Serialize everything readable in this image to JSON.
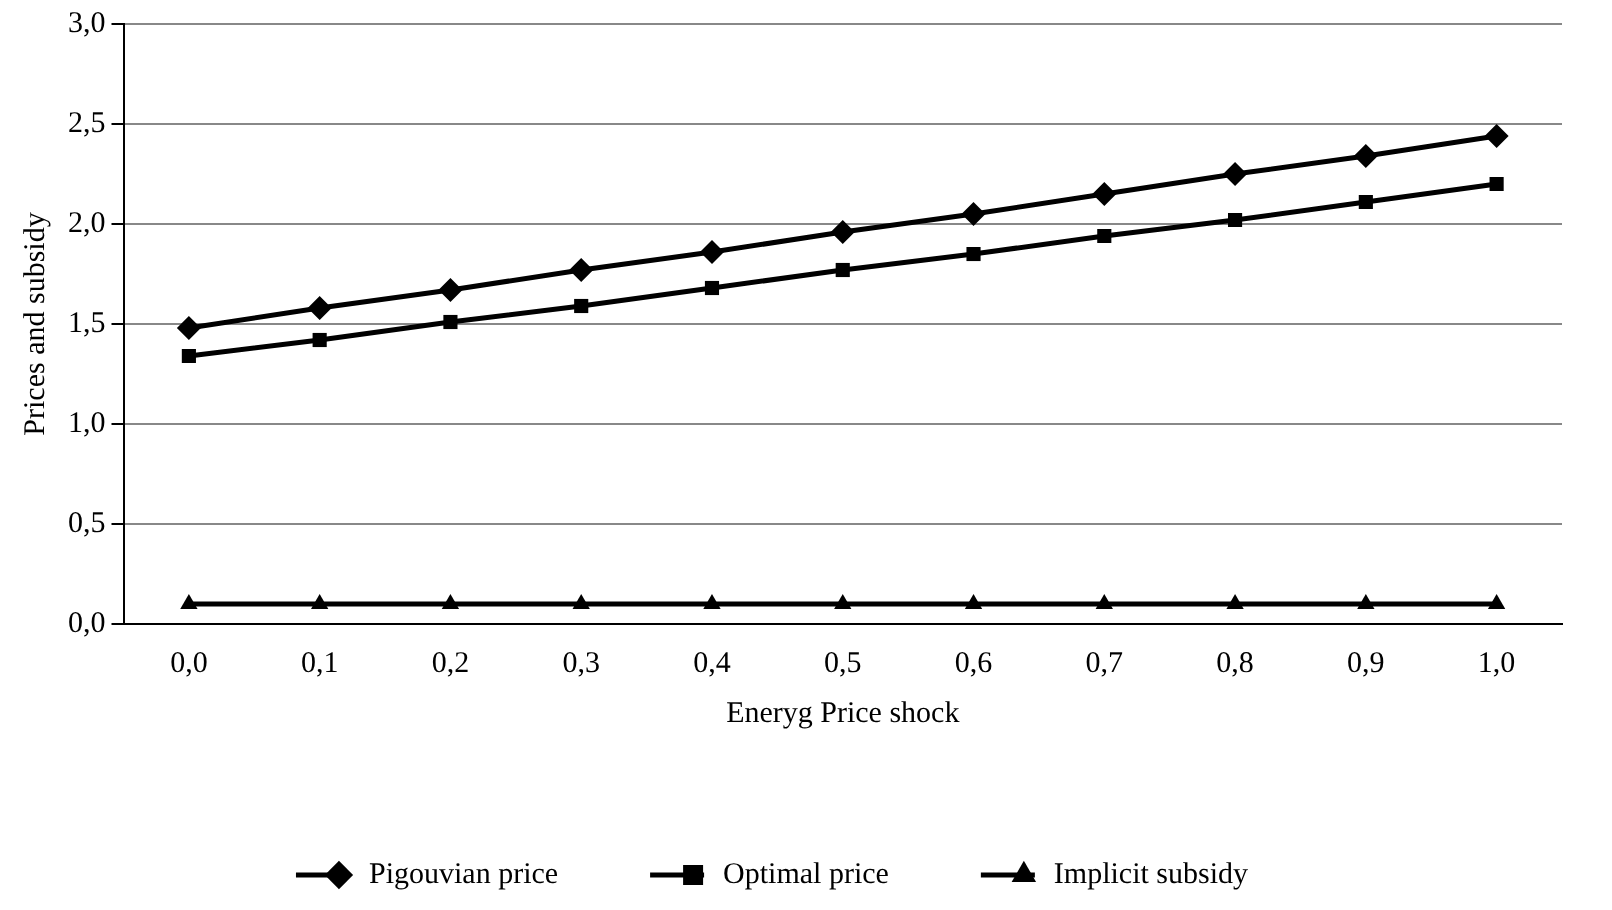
{
  "chart_data": {
    "type": "line",
    "xlabel": "Eneryg Price shock",
    "ylabel": "Prices and subsidy",
    "categories": [
      "0,0",
      "0,1",
      "0,2",
      "0,3",
      "0,4",
      "0,5",
      "0,6",
      "0,7",
      "0,8",
      "0,9",
      "1,0"
    ],
    "series": [
      {
        "name": "Pigouvian price",
        "color": "#000000",
        "marker": "diamond",
        "values": [
          1.48,
          1.58,
          1.67,
          1.77,
          1.86,
          1.96,
          2.05,
          2.15,
          2.25,
          2.34,
          2.44
        ]
      },
      {
        "name": "Optimal price",
        "color": "#000000",
        "marker": "square",
        "values": [
          1.34,
          1.42,
          1.51,
          1.59,
          1.68,
          1.77,
          1.85,
          1.94,
          2.02,
          2.11,
          2.2
        ]
      },
      {
        "name": "Implicit subsidy",
        "color": "#000000",
        "marker": "triangle",
        "values": [
          0.1,
          0.1,
          0.1,
          0.1,
          0.1,
          0.1,
          0.1,
          0.1,
          0.1,
          0.1,
          0.1
        ]
      }
    ],
    "ylim": [
      0,
      3
    ],
    "yticks": [
      {
        "value": 0,
        "label": "0,0"
      },
      {
        "value": 0.5,
        "label": "0,5"
      },
      {
        "value": 1,
        "label": "1,0"
      },
      {
        "value": 1.5,
        "label": "1,5"
      },
      {
        "value": 2,
        "label": "2,0"
      },
      {
        "value": 2.5,
        "label": "2,5"
      },
      {
        "value": 3,
        "label": "3,0"
      }
    ],
    "grid": "y",
    "legend": "bottom",
    "line_style": "solid"
  }
}
